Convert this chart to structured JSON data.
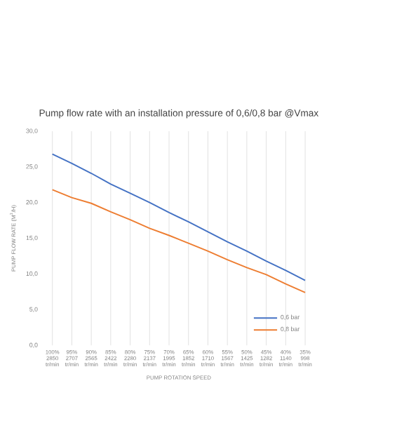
{
  "chart_data": {
    "type": "line",
    "title": "Pump flow rate with an installation pressure of  0,6/0,8 bar @Vmax",
    "xlabel": "PUMP ROTATION SPEED",
    "ylabel": "PUMP FLOW RATE (M$^{3}$/H)",
    "categories": [
      "100% 2850 tr/min",
      "95% 2707 tr/min",
      "90% 2565 tr/min",
      "85% 2422 tr/min",
      "80% 2280 tr/min",
      "75% 2137 tr/min",
      "70% 1995 tr/min",
      "65% 1852 tr/min",
      "60% 1710 tr/min",
      "55% 1567 tr/min",
      "50% 1425 tr/min",
      "45% 1282 tr/min",
      "40% 1140 tr/min",
      "35% 998 tr/min"
    ],
    "series": [
      {
        "name": "0,6 bar",
        "color": "#4472c4",
        "values": [
          26.8,
          25.5,
          24.1,
          22.6,
          21.3,
          20.0,
          18.6,
          17.3,
          15.9,
          14.5,
          13.2,
          11.8,
          10.5,
          9.1
        ]
      },
      {
        "name": "0,8 bar",
        "color": "#ed7d31",
        "values": [
          21.8,
          20.7,
          19.9,
          18.7,
          17.6,
          16.4,
          15.4,
          14.3,
          13.2,
          12.0,
          10.9,
          9.9,
          8.6,
          7.4
        ]
      }
    ],
    "ylim": [
      0,
      30
    ],
    "yticks": [
      {
        "value": 0,
        "label": "0,0"
      },
      {
        "value": 5,
        "label": "5,0"
      },
      {
        "value": 10,
        "label": "10,0"
      },
      {
        "value": 15,
        "label": "15,0"
      },
      {
        "value": 20,
        "label": "20,0"
      },
      {
        "value": 25,
        "label": "25,0"
      },
      {
        "value": 30,
        "label": "30,0"
      }
    ],
    "grid": "x",
    "legend": "bottom right",
    "marker": "none",
    "line_style": "solid"
  }
}
